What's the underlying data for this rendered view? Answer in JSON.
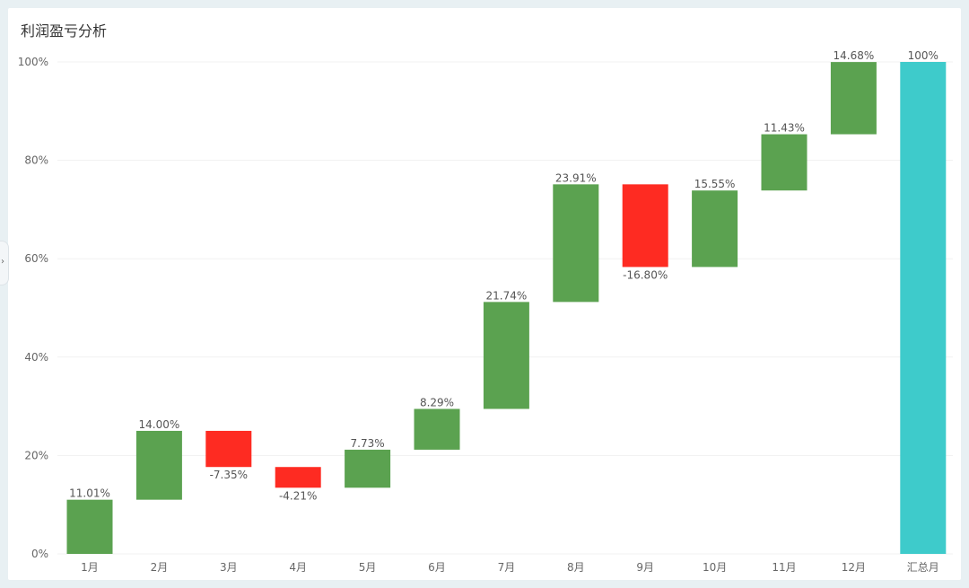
{
  "header": {
    "title": "利润盈亏分析"
  },
  "sidebar_toggle": {
    "icon": "chevron-right-icon",
    "glyph": "›"
  },
  "colors": {
    "positive": "#5ba250",
    "negative": "#fe2b22",
    "total": "#3ecbcb",
    "grid": "#f1f1f1",
    "axis_text": "#666666",
    "label_text": "#555555"
  },
  "chart_data": {
    "type": "bar",
    "subtype": "waterfall",
    "title": "利润盈亏分析",
    "categories": [
      "1月",
      "2月",
      "3月",
      "4月",
      "5月",
      "6月",
      "7月",
      "8月",
      "9月",
      "10月",
      "11月",
      "12月",
      "汇总月"
    ],
    "values": [
      11.01,
      14.0,
      -7.35,
      -4.21,
      7.73,
      8.29,
      21.74,
      23.91,
      -16.8,
      15.55,
      11.43,
      14.68,
      100
    ],
    "value_labels": [
      "11.01%",
      "14.00%",
      "-7.35%",
      "-4.21%",
      "7.73%",
      "8.29%",
      "21.74%",
      "23.91%",
      "-16.80%",
      "15.55%",
      "11.43%",
      "14.68%",
      "100%"
    ],
    "is_total": [
      false,
      false,
      false,
      false,
      false,
      false,
      false,
      false,
      false,
      false,
      false,
      false,
      true
    ],
    "y_ticks": [
      0,
      20,
      40,
      60,
      80,
      100
    ],
    "y_tick_labels": [
      "0%",
      "20%",
      "40%",
      "60%",
      "80%",
      "100%"
    ],
    "ylim": [
      0,
      100
    ],
    "grid": true,
    "legend": "none"
  }
}
